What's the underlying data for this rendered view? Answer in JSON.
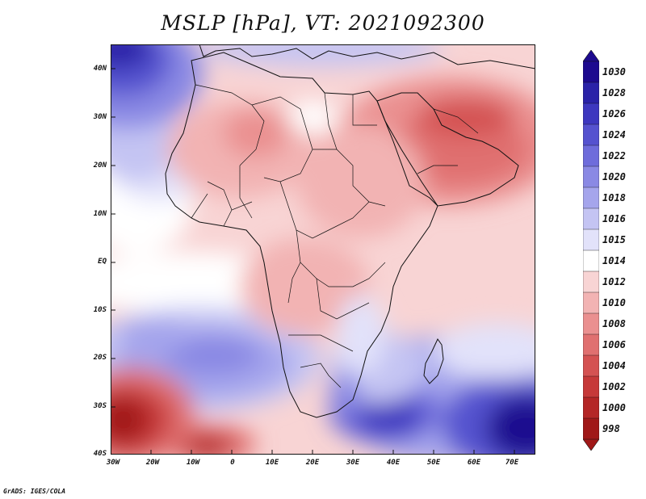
{
  "title": "MSLP [hPa], VT: 2021092300",
  "credit": "GrADS: IGES/COLA",
  "map": {
    "lat_labels": [
      "40N",
      "30N",
      "20N",
      "10N",
      "EQ",
      "10S",
      "20S",
      "30S",
      "40S"
    ],
    "lon_labels": [
      "30W",
      "20W",
      "10W",
      "0",
      "10E",
      "20E",
      "30E",
      "40E",
      "50E",
      "60E",
      "70E"
    ],
    "field": "Mean sea level pressure",
    "units": "hPa",
    "valid_time": "2021092300"
  },
  "colorbar": {
    "levels": [
      "1030",
      "1028",
      "1026",
      "1024",
      "1022",
      "1020",
      "1018",
      "1016",
      "1015",
      "1014",
      "1012",
      "1010",
      "1008",
      "1006",
      "1004",
      "1002",
      "1000",
      "998"
    ],
    "colors": [
      "#1d0a8f",
      "#2a22a8",
      "#3d37bf",
      "#5552cf",
      "#6e6cdb",
      "#8a89e4",
      "#a5a5ec",
      "#c4c4f3",
      "#e2e2fa",
      "#ffffff",
      "#f8d4d4",
      "#f2b3b3",
      "#ea9090",
      "#e07070",
      "#d45252",
      "#c63939",
      "#b42626",
      "#a01818"
    ]
  }
}
